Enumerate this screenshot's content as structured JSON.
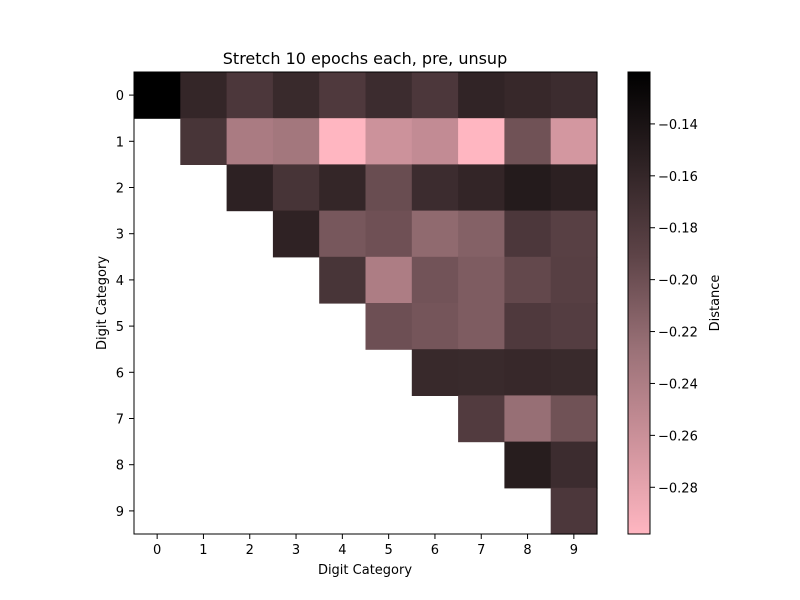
{
  "chart_data": {
    "type": "heatmap",
    "title": "Stretch 10 epochs each, pre, unsup",
    "xlabel": "Digit Category",
    "ylabel": "Digit Category",
    "x_categories": [
      "0",
      "1",
      "2",
      "3",
      "4",
      "5",
      "6",
      "7",
      "8",
      "9"
    ],
    "y_categories": [
      "0",
      "1",
      "2",
      "3",
      "4",
      "5",
      "6",
      "7",
      "8",
      "9"
    ],
    "values": [
      [
        -0.12,
        -0.16,
        -0.178,
        -0.164,
        -0.18,
        -0.166,
        -0.178,
        -0.158,
        -0.162,
        -0.166
      ],
      [
        null,
        -0.175,
        -0.238,
        -0.233,
        -0.298,
        -0.262,
        -0.255,
        -0.301,
        -0.202,
        -0.267
      ],
      [
        null,
        null,
        -0.155,
        -0.174,
        -0.16,
        -0.198,
        -0.166,
        -0.159,
        -0.148,
        -0.154
      ],
      [
        null,
        null,
        null,
        -0.156,
        -0.206,
        -0.201,
        -0.221,
        -0.214,
        -0.178,
        -0.187
      ],
      [
        null,
        null,
        null,
        null,
        -0.175,
        -0.24,
        -0.203,
        -0.21,
        -0.194,
        -0.186
      ],
      [
        null,
        null,
        null,
        null,
        null,
        -0.2,
        -0.205,
        -0.21,
        -0.18,
        -0.184
      ],
      [
        null,
        null,
        null,
        null,
        null,
        null,
        -0.163,
        -0.164,
        -0.162,
        -0.164
      ],
      [
        null,
        null,
        null,
        null,
        null,
        null,
        null,
        -0.182,
        -0.225,
        -0.202
      ],
      [
        null,
        null,
        null,
        null,
        null,
        null,
        null,
        null,
        -0.15,
        -0.166
      ],
      [
        null,
        null,
        null,
        null,
        null,
        null,
        null,
        null,
        null,
        -0.178
      ]
    ],
    "colorbar": {
      "label": "Distance",
      "vmin": -0.298,
      "vmax": -0.12,
      "ticks": [
        -0.14,
        -0.16,
        -0.18,
        -0.2,
        -0.22,
        -0.24,
        -0.26,
        -0.28
      ],
      "tick_labels": [
        "−0.14",
        "−0.16",
        "−0.18",
        "−0.20",
        "−0.22",
        "−0.24",
        "−0.26",
        "−0.28"
      ],
      "colormap": [
        "#ffb6c1",
        "#cd929b",
        "#9a7177",
        "#5e4448",
        "#2e2224",
        "#000000"
      ]
    },
    "grid": false,
    "empty_color": "#ffffff"
  }
}
